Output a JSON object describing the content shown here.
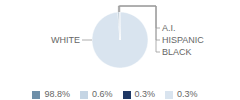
{
  "chart_data": {
    "type": "pie",
    "categories": [
      "WHITE",
      "A.I.",
      "HISPANIC",
      "BLACK"
    ],
    "values": [
      98.8,
      0.6,
      0.3,
      0.3
    ],
    "value_labels": [
      "98.8%",
      "0.6%",
      "0.3%",
      "0.3%"
    ],
    "colors": [
      "#d9e4ef",
      "#6e8fa8",
      "#1f3864",
      "#c5d5e4"
    ],
    "legend": "bottom"
  }
}
